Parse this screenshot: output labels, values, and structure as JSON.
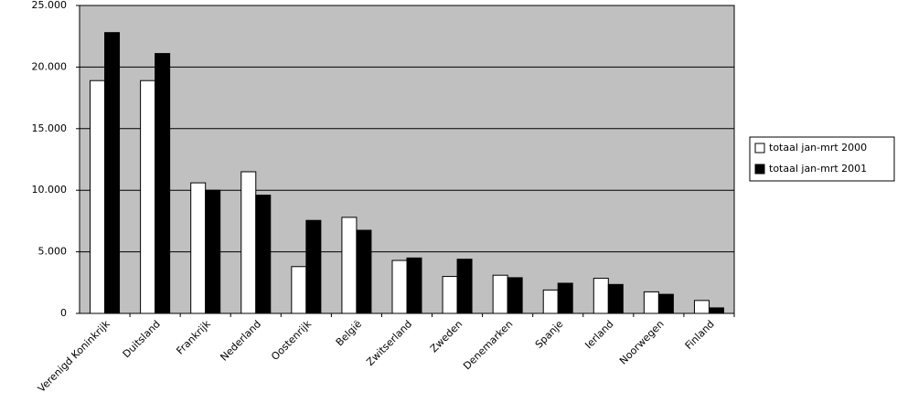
{
  "chart_data": {
    "type": "bar",
    "categories": [
      "Verenigd Koninkrijk",
      "Duitsland",
      "Frankrijk",
      "Nederland",
      "Oostenrijk",
      "België",
      "Zwitserland",
      "Zweden",
      "Denemarken",
      "Spanje",
      "Ierland",
      "Noorwegen",
      "Finland"
    ],
    "series": [
      {
        "name": "totaal jan-mrt 2000",
        "color": "#ffffff",
        "values": [
          18900,
          18900,
          10600,
          11500,
          3800,
          7800,
          4300,
          3000,
          3100,
          1900,
          2850,
          1750,
          1050
        ]
      },
      {
        "name": "totaal jan-mrt 2001",
        "color": "#000000",
        "values": [
          22800,
          21100,
          10000,
          9600,
          7550,
          6750,
          4500,
          4400,
          2900,
          2450,
          2350,
          1550,
          450
        ]
      }
    ],
    "ylim": [
      0,
      25000
    ],
    "yticks": [
      0,
      {
        "value": 5000,
        "label": "5.000"
      },
      {
        "value": 10000,
        "label": "10.000"
      },
      {
        "value": 15000,
        "label": "15.000"
      },
      {
        "value": 20000,
        "label": "20.000"
      },
      {
        "value": 25000,
        "label": "25.000"
      }
    ],
    "grid": true,
    "plot_background": "#c0c0c0",
    "legend": "right"
  }
}
